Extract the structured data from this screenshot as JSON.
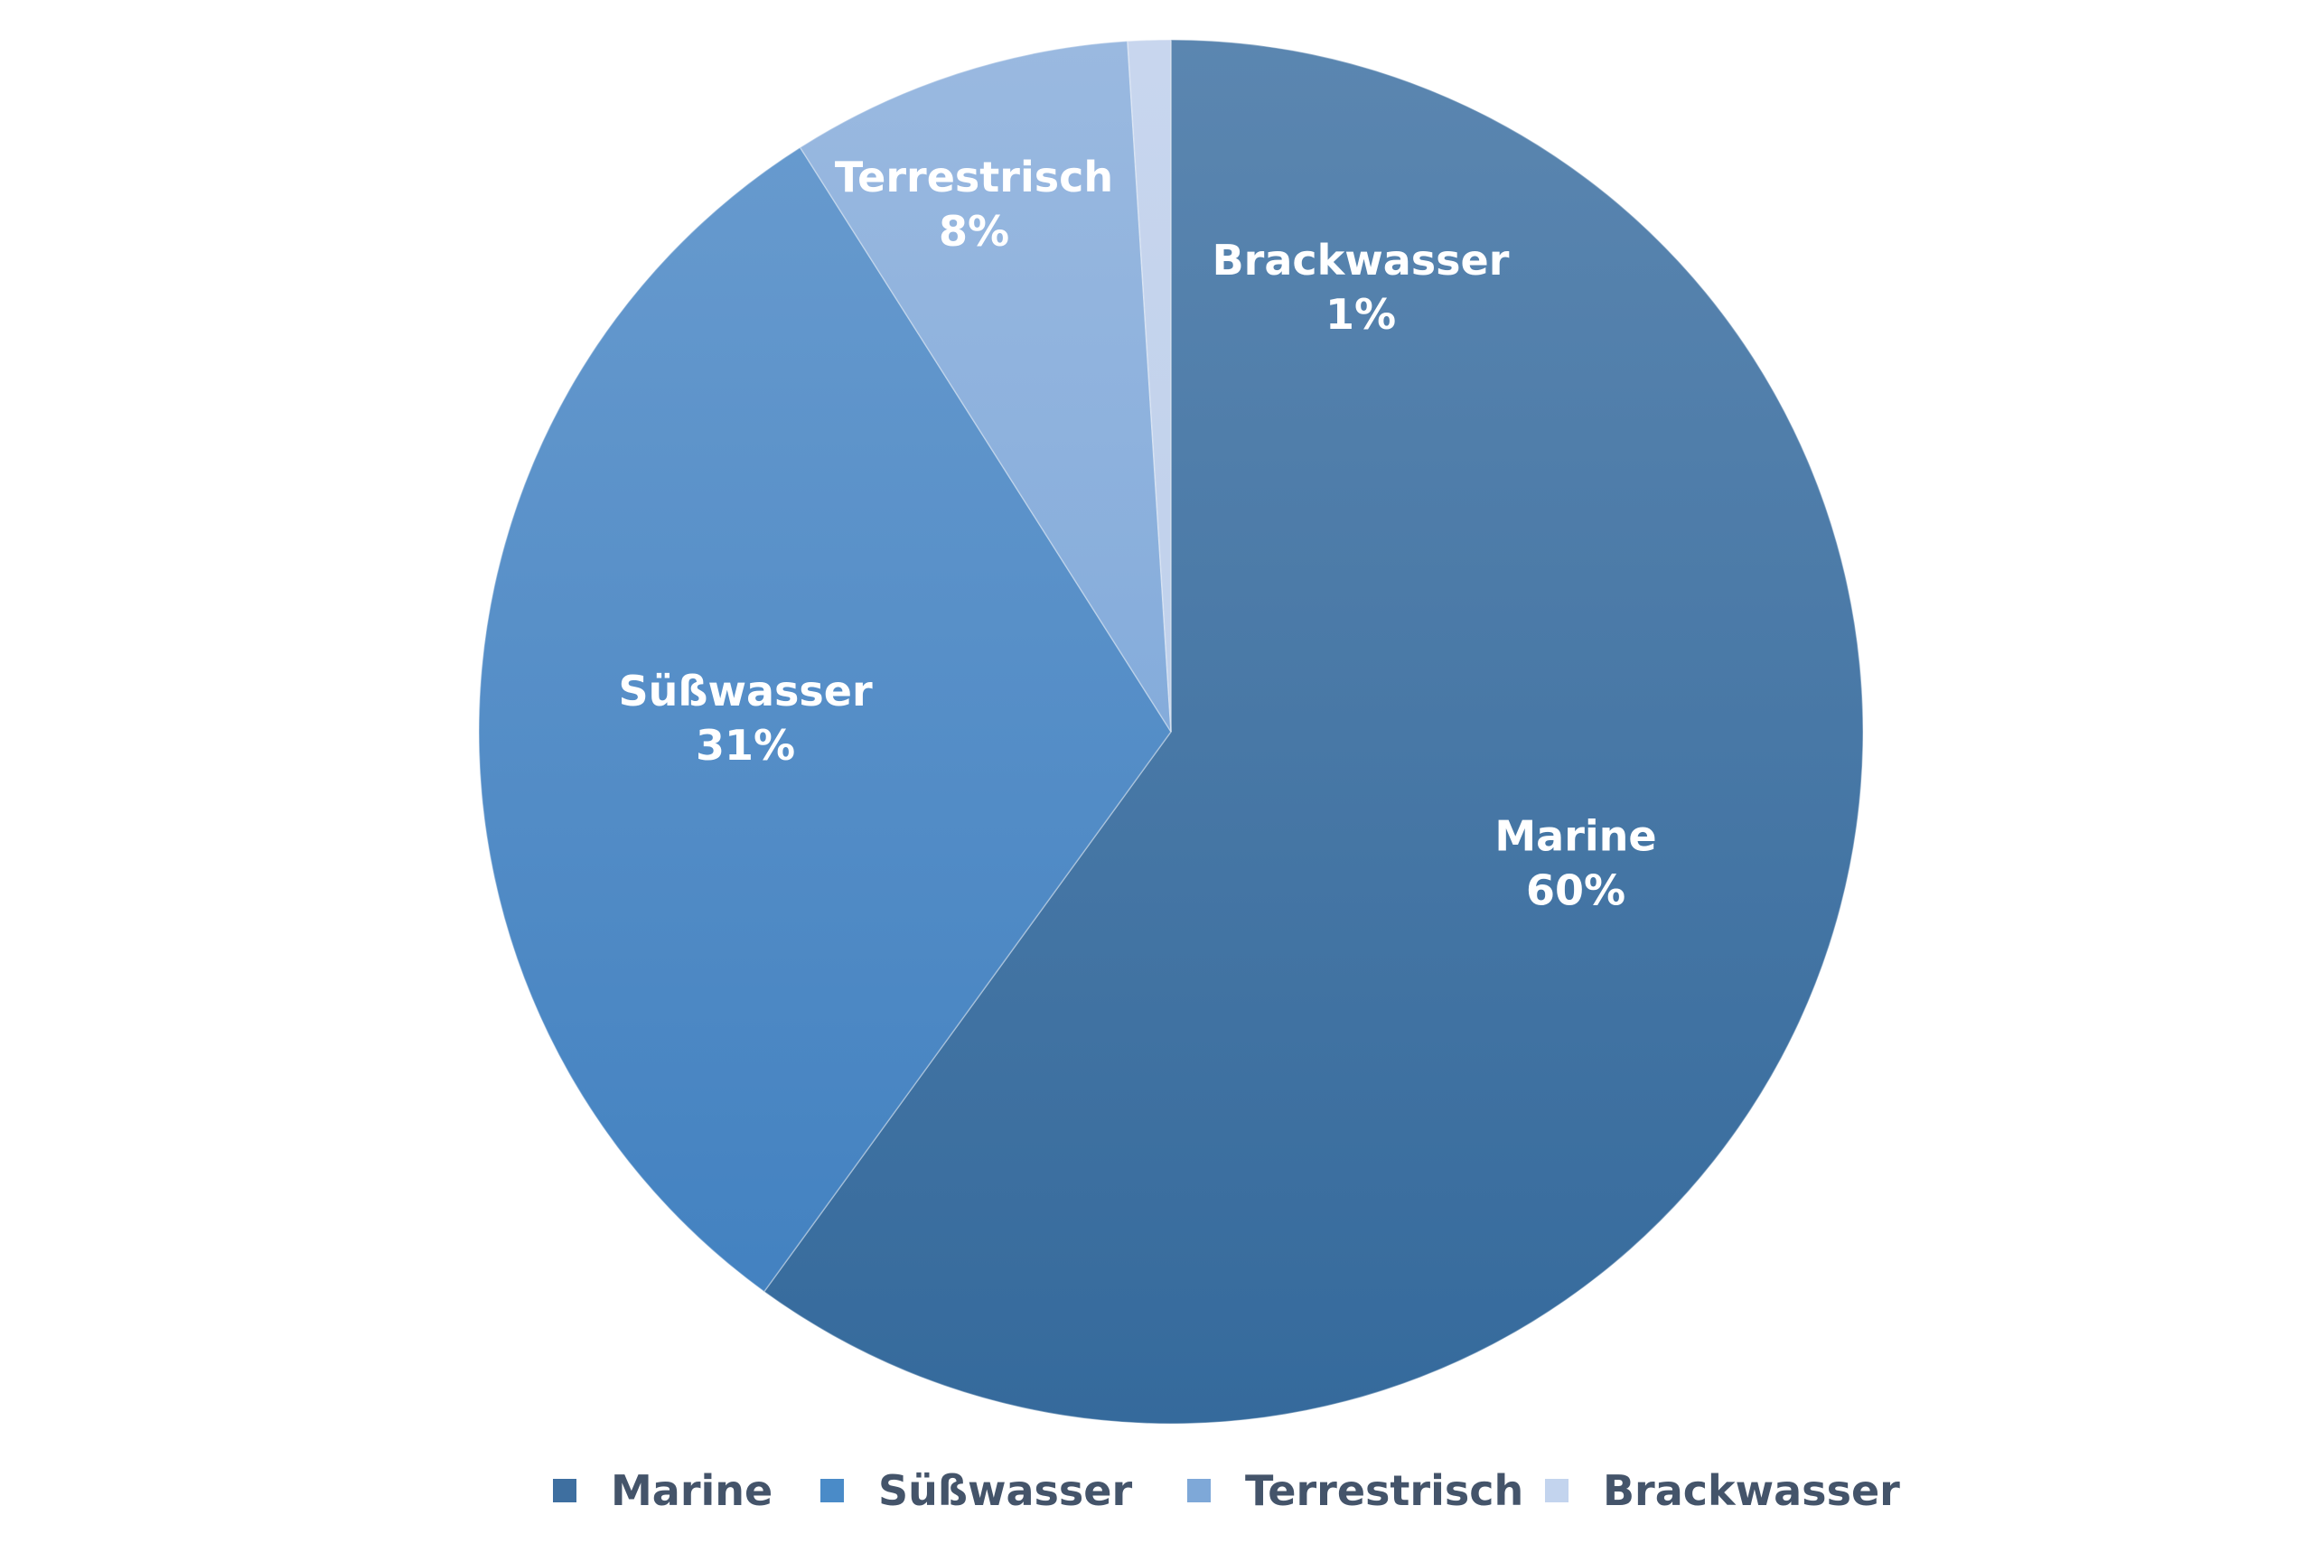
{
  "chart_data": {
    "type": "pie",
    "title": "",
    "start_angle_deg": 0,
    "direction": "clockwise",
    "slices": [
      {
        "name": "Marine",
        "value": 60,
        "label": "60%",
        "color_top": "#5b86b0",
        "color_bottom": "#356a9c",
        "legend_color": "#3e6fa0"
      },
      {
        "name": "Süßwasser",
        "value": 31,
        "label": "31%",
        "color_top": "#6a9ccf",
        "color_bottom": "#3f7fbf",
        "legend_color": "#4a8bc8"
      },
      {
        "name": "Terrestrisch",
        "value": 8,
        "label": "8%",
        "color_top": "#9ab9e0",
        "color_bottom": "#6f9fd6",
        "legend_color": "#7ea8d8"
      },
      {
        "name": "Brackwasser",
        "value": 1,
        "label": "1%",
        "color_top": "#c8d6ee",
        "color_bottom": "#b7cbe8",
        "legend_color": "#c3d4ee"
      }
    ],
    "legend_position": "bottom",
    "data_labels": "inside, category name and percentage"
  }
}
